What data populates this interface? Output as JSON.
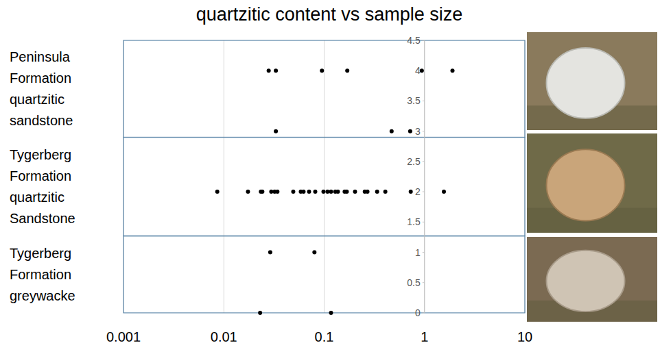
{
  "chart_data": {
    "type": "scatter",
    "title": "quartzitic content vs sample size",
    "log": "x",
    "grid": true,
    "color": "#000000",
    "marker": "circle",
    "xlim": [
      0.001,
      10
    ],
    "xticks": [
      0.001,
      0.01,
      0.1,
      1,
      10
    ],
    "ylim": [
      0,
      4.5
    ],
    "yticks": [
      0,
      0.5,
      1,
      1.5,
      2,
      2.5,
      3,
      3.5,
      4,
      4.5
    ],
    "groups": [
      {
        "label": "Peninsula Formation quartzitic sandstone",
        "range": [
          2.9,
          4.5
        ]
      },
      {
        "label": "Tygerberg Formation quartzitic Sandstone",
        "range": [
          1.27,
          2.9
        ]
      },
      {
        "label": "Tygerberg Formation greywacke",
        "range": [
          0,
          1.27
        ]
      }
    ],
    "x": [
      0.028,
      0.033,
      0.095,
      0.17,
      0.94,
      1.9,
      0.033,
      0.47,
      0.72,
      0.0086,
      0.0174,
      0.0234,
      0.0242,
      0.0297,
      0.0321,
      0.0342,
      0.0492,
      0.0585,
      0.0623,
      0.0707,
      0.0815,
      0.0984,
      0.108,
      0.117,
      0.129,
      0.137,
      0.16,
      0.168,
      0.203,
      0.254,
      0.27,
      0.337,
      0.407,
      0.729,
      1.56,
      0.029,
      0.08,
      0.023,
      0.117
    ],
    "values": [
      4,
      4,
      4,
      4,
      4,
      4,
      3,
      3,
      3,
      2,
      2,
      2,
      2,
      2,
      2,
      2,
      2,
      2,
      2,
      2,
      2,
      2,
      2,
      2,
      2,
      2,
      2,
      2,
      2,
      2,
      2,
      2,
      2,
      2,
      2,
      1,
      1,
      0,
      0
    ]
  }
}
